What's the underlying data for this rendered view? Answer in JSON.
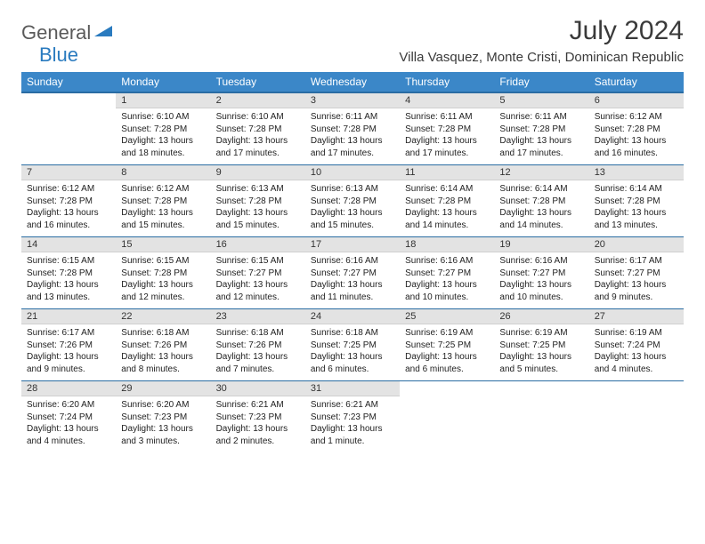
{
  "logo": {
    "general": "General",
    "blue": "Blue",
    "icon_color": "#2a7bbf"
  },
  "title": "July 2024",
  "location": "Villa Vasquez, Monte Cristi, Dominican Republic",
  "day_headers": [
    "Sunday",
    "Monday",
    "Tuesday",
    "Wednesday",
    "Thursday",
    "Friday",
    "Saturday"
  ],
  "colors": {
    "header_bg": "#3b87c8",
    "header_border": "#2a6ca3",
    "daynum_bg": "#e3e3e3",
    "text": "#222222"
  },
  "weeks": [
    [
      null,
      {
        "n": "1",
        "sunrise": "6:10 AM",
        "sunset": "7:28 PM",
        "daylight": "13 hours and 18 minutes."
      },
      {
        "n": "2",
        "sunrise": "6:10 AM",
        "sunset": "7:28 PM",
        "daylight": "13 hours and 17 minutes."
      },
      {
        "n": "3",
        "sunrise": "6:11 AM",
        "sunset": "7:28 PM",
        "daylight": "13 hours and 17 minutes."
      },
      {
        "n": "4",
        "sunrise": "6:11 AM",
        "sunset": "7:28 PM",
        "daylight": "13 hours and 17 minutes."
      },
      {
        "n": "5",
        "sunrise": "6:11 AM",
        "sunset": "7:28 PM",
        "daylight": "13 hours and 17 minutes."
      },
      {
        "n": "6",
        "sunrise": "6:12 AM",
        "sunset": "7:28 PM",
        "daylight": "13 hours and 16 minutes."
      }
    ],
    [
      {
        "n": "7",
        "sunrise": "6:12 AM",
        "sunset": "7:28 PM",
        "daylight": "13 hours and 16 minutes."
      },
      {
        "n": "8",
        "sunrise": "6:12 AM",
        "sunset": "7:28 PM",
        "daylight": "13 hours and 15 minutes."
      },
      {
        "n": "9",
        "sunrise": "6:13 AM",
        "sunset": "7:28 PM",
        "daylight": "13 hours and 15 minutes."
      },
      {
        "n": "10",
        "sunrise": "6:13 AM",
        "sunset": "7:28 PM",
        "daylight": "13 hours and 15 minutes."
      },
      {
        "n": "11",
        "sunrise": "6:14 AM",
        "sunset": "7:28 PM",
        "daylight": "13 hours and 14 minutes."
      },
      {
        "n": "12",
        "sunrise": "6:14 AM",
        "sunset": "7:28 PM",
        "daylight": "13 hours and 14 minutes."
      },
      {
        "n": "13",
        "sunrise": "6:14 AM",
        "sunset": "7:28 PM",
        "daylight": "13 hours and 13 minutes."
      }
    ],
    [
      {
        "n": "14",
        "sunrise": "6:15 AM",
        "sunset": "7:28 PM",
        "daylight": "13 hours and 13 minutes."
      },
      {
        "n": "15",
        "sunrise": "6:15 AM",
        "sunset": "7:28 PM",
        "daylight": "13 hours and 12 minutes."
      },
      {
        "n": "16",
        "sunrise": "6:15 AM",
        "sunset": "7:27 PM",
        "daylight": "13 hours and 12 minutes."
      },
      {
        "n": "17",
        "sunrise": "6:16 AM",
        "sunset": "7:27 PM",
        "daylight": "13 hours and 11 minutes."
      },
      {
        "n": "18",
        "sunrise": "6:16 AM",
        "sunset": "7:27 PM",
        "daylight": "13 hours and 10 minutes."
      },
      {
        "n": "19",
        "sunrise": "6:16 AM",
        "sunset": "7:27 PM",
        "daylight": "13 hours and 10 minutes."
      },
      {
        "n": "20",
        "sunrise": "6:17 AM",
        "sunset": "7:27 PM",
        "daylight": "13 hours and 9 minutes."
      }
    ],
    [
      {
        "n": "21",
        "sunrise": "6:17 AM",
        "sunset": "7:26 PM",
        "daylight": "13 hours and 9 minutes."
      },
      {
        "n": "22",
        "sunrise": "6:18 AM",
        "sunset": "7:26 PM",
        "daylight": "13 hours and 8 minutes."
      },
      {
        "n": "23",
        "sunrise": "6:18 AM",
        "sunset": "7:26 PM",
        "daylight": "13 hours and 7 minutes."
      },
      {
        "n": "24",
        "sunrise": "6:18 AM",
        "sunset": "7:25 PM",
        "daylight": "13 hours and 6 minutes."
      },
      {
        "n": "25",
        "sunrise": "6:19 AM",
        "sunset": "7:25 PM",
        "daylight": "13 hours and 6 minutes."
      },
      {
        "n": "26",
        "sunrise": "6:19 AM",
        "sunset": "7:25 PM",
        "daylight": "13 hours and 5 minutes."
      },
      {
        "n": "27",
        "sunrise": "6:19 AM",
        "sunset": "7:24 PM",
        "daylight": "13 hours and 4 minutes."
      }
    ],
    [
      {
        "n": "28",
        "sunrise": "6:20 AM",
        "sunset": "7:24 PM",
        "daylight": "13 hours and 4 minutes."
      },
      {
        "n": "29",
        "sunrise": "6:20 AM",
        "sunset": "7:23 PM",
        "daylight": "13 hours and 3 minutes."
      },
      {
        "n": "30",
        "sunrise": "6:21 AM",
        "sunset": "7:23 PM",
        "daylight": "13 hours and 2 minutes."
      },
      {
        "n": "31",
        "sunrise": "6:21 AM",
        "sunset": "7:23 PM",
        "daylight": "13 hours and 1 minute."
      },
      null,
      null,
      null
    ]
  ],
  "labels": {
    "sunrise": "Sunrise: ",
    "sunset": "Sunset: ",
    "daylight": "Daylight: "
  }
}
